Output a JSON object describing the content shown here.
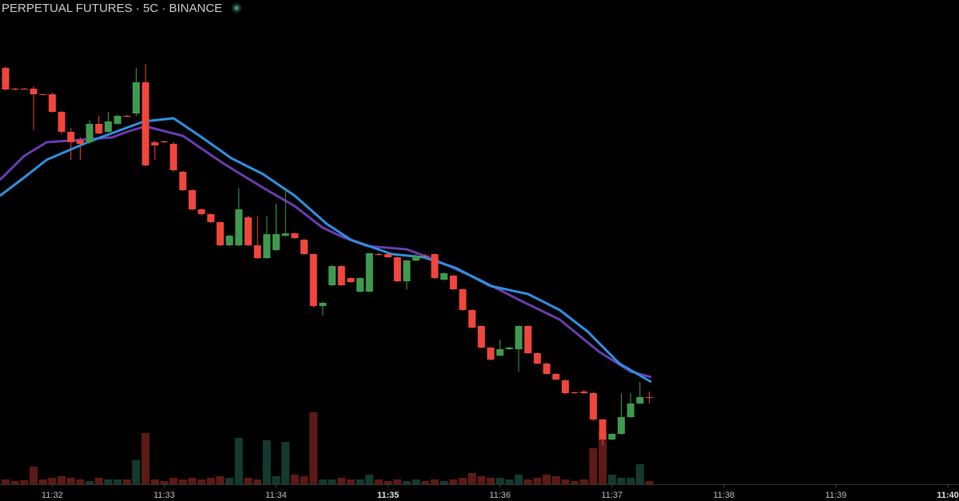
{
  "chart_data": {
    "type": "candlestick",
    "title": "PERPETUAL FUTURES · 5C · BINANCE",
    "xlim": [
      1892,
      2406
    ],
    "xticks": [
      {
        "value": 1920,
        "label": "11:32"
      },
      {
        "value": 1980,
        "label": "11:33"
      },
      {
        "value": 2040,
        "label": "11:34"
      },
      {
        "value": 2100,
        "label": "11:35"
      },
      {
        "value": 2160,
        "label": "11:36"
      },
      {
        "value": 2220,
        "label": "11:37"
      },
      {
        "value": 2280,
        "label": "11:38"
      },
      {
        "value": 2340,
        "label": "11:39"
      },
      {
        "value": 2400,
        "label": "11:40"
      }
    ],
    "ylim": [
      0,
      627
    ],
    "y2lim": [
      0,
      606
    ],
    "up_color": "#3f9a4f",
    "down_color": "#f0463c",
    "volume_up_color": "#143a30",
    "volume_down_color": "#5c1a17",
    "x": [
      1895,
      1900,
      1905,
      1910,
      1915,
      1920,
      1925,
      1930,
      1935,
      1940,
      1945,
      1950,
      1955,
      1960,
      1965,
      1970,
      1975,
      1980,
      1985,
      1990,
      1995,
      2000,
      2005,
      2010,
      2015,
      2020,
      2025,
      2030,
      2035,
      2040,
      2045,
      2050,
      2055,
      2060,
      2065,
      2070,
      2075,
      2080,
      2085,
      2090,
      2095,
      2100,
      2105,
      2110,
      2115,
      2120,
      2125,
      2130,
      2135,
      2140,
      2145,
      2150,
      2155,
      2160,
      2165,
      2170,
      2175,
      2180,
      2185,
      2190,
      2195,
      2200,
      2205,
      2210,
      2215,
      2220,
      2225,
      2230,
      2235,
      2240
    ],
    "open": [
      542,
      516,
      516,
      516,
      509,
      509,
      487,
      462,
      452,
      449,
      472,
      462,
      472,
      482,
      485,
      524,
      449,
      450,
      447,
      412,
      389,
      365,
      359,
      349,
      320,
      320,
      355,
      320,
      304,
      314,
      332,
      335,
      327,
      309,
      244,
      270,
      294,
      279,
      262,
      262,
      309,
      309,
      305,
      275,
      301,
      307,
      309,
      277,
      282,
      265,
      239,
      219,
      192,
      182,
      190,
      190,
      219,
      185,
      172,
      159,
      151,
      136,
      137,
      135,
      102,
      77,
      84,
      105,
      122,
      130
    ],
    "close": [
      515,
      515,
      516,
      509,
      509,
      487,
      462,
      449,
      447,
      472,
      460,
      475,
      482,
      481,
      524,
      420,
      445,
      449,
      414,
      389,
      365,
      359,
      349,
      320,
      332,
      365,
      320,
      304,
      334,
      334,
      335,
      329,
      309,
      244,
      248,
      294,
      270,
      274,
      279,
      310,
      308,
      305,
      275,
      301,
      307,
      306,
      279,
      285,
      265,
      239,
      217,
      192,
      177,
      190,
      192,
      219,
      185,
      172,
      159,
      152,
      135,
      135,
      135,
      102,
      77,
      84,
      105,
      122,
      130,
      129
    ],
    "high": [
      544,
      517,
      517,
      519,
      510,
      511,
      488,
      467,
      455,
      477,
      482,
      487,
      483,
      483,
      542,
      547,
      451,
      451,
      449,
      413,
      390,
      366,
      360,
      350,
      333,
      392,
      357,
      357,
      357,
      372,
      392,
      336,
      328,
      310,
      249,
      295,
      295,
      280,
      280,
      311,
      311,
      310,
      306,
      302,
      309,
      309,
      310,
      286,
      283,
      266,
      240,
      220,
      193,
      202,
      193,
      220,
      220,
      186,
      173,
      160,
      152,
      137,
      139,
      136,
      103,
      85,
      135,
      135,
      149,
      137
    ],
    "low": [
      514,
      514,
      515,
      464,
      508,
      486,
      459,
      427,
      427,
      447,
      459,
      461,
      471,
      480,
      482,
      419,
      427,
      448,
      412,
      388,
      364,
      357,
      348,
      319,
      319,
      319,
      319,
      303,
      303,
      313,
      331,
      328,
      308,
      242,
      232,
      269,
      269,
      273,
      261,
      261,
      307,
      304,
      274,
      265,
      300,
      305,
      278,
      276,
      264,
      238,
      216,
      191,
      176,
      181,
      189,
      162,
      184,
      171,
      158,
      151,
      134,
      134,
      134,
      100,
      70,
      76,
      83,
      104,
      121,
      122
    ],
    "volume": [
      6,
      4,
      5,
      22,
      6,
      8,
      10,
      8,
      6,
      4,
      8,
      6,
      6,
      6,
      30,
      64,
      6,
      4,
      8,
      6,
      8,
      6,
      8,
      10,
      8,
      58,
      8,
      6,
      55,
      10,
      53,
      12,
      10,
      90,
      6,
      6,
      8,
      6,
      6,
      12,
      6,
      4,
      6,
      4,
      6,
      4,
      6,
      4,
      6,
      8,
      14,
      10,
      8,
      8,
      6,
      12,
      6,
      8,
      12,
      10,
      6,
      4,
      6,
      45,
      65,
      12,
      8,
      8,
      25,
      4
    ],
    "lines": [
      {
        "color": "#6a3bb0",
        "x": [
          1892,
          1905,
          1917,
          1935,
          1952,
          1960,
          1970,
          1990,
          2012,
          2033,
          2050,
          2065,
          2076,
          2089,
          2110,
          2125,
          2149,
          2170,
          2192,
          2213,
          2230,
          2241
        ],
        "values": [
          402,
          432,
          449,
          452,
          455,
          462,
          469,
          457,
          422,
          392,
          369,
          342,
          330,
          319,
          315,
          302,
          277,
          252,
          227,
          187,
          162,
          155
        ]
      },
      {
        "color": "#2f8fe0",
        "x": [
          1892,
          1905,
          1917,
          1939,
          1969,
          1985,
          1999,
          2016,
          2033,
          2050,
          2067,
          2080,
          2102,
          2119,
          2136,
          2155,
          2175,
          2192,
          2207,
          2224,
          2241
        ],
        "values": [
          382,
          405,
          427,
          449,
          475,
          479,
          457,
          429,
          409,
          382,
          347,
          327,
          309,
          305,
          292,
          269,
          259,
          239,
          212,
          172,
          149
        ]
      }
    ]
  }
}
